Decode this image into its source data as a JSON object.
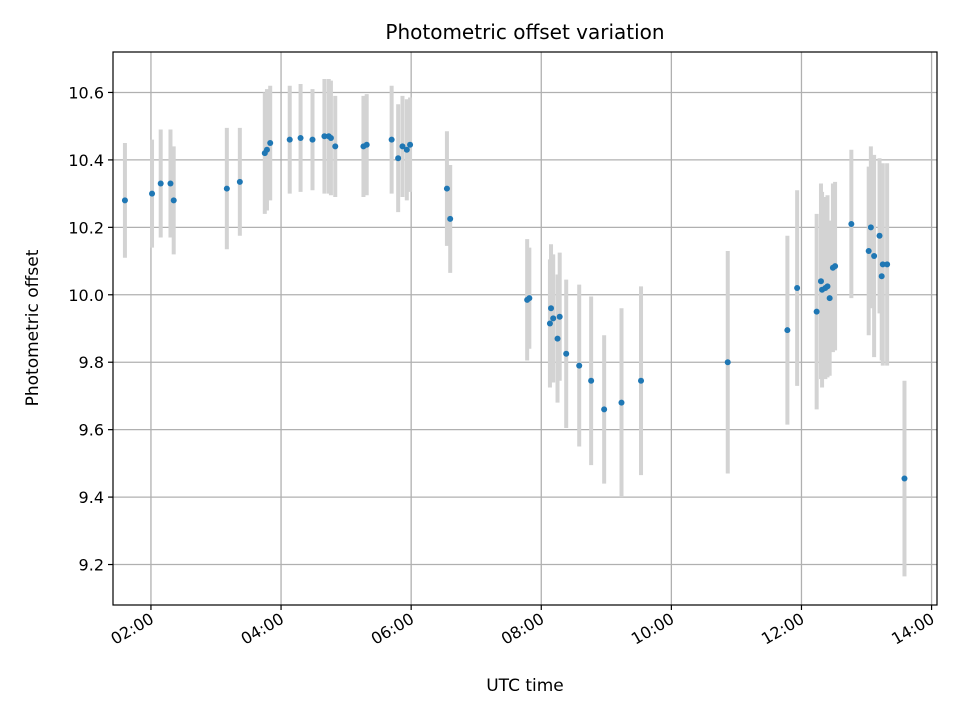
{
  "chart_data": {
    "type": "scatter",
    "title": "Photometric offset variation",
    "xlabel": "UTC time",
    "ylabel": "Photometric offset",
    "grid": true,
    "xlim": [
      "01:25",
      "14:05"
    ],
    "ylim": [
      9.08,
      10.72
    ],
    "x_ticks": [
      "02:00",
      "04:00",
      "06:00",
      "08:00",
      "10:00",
      "12:00",
      "14:00"
    ],
    "y_ticks": [
      "9.2",
      "9.4",
      "9.6",
      "9.8",
      "10.0",
      "10.2",
      "10.4",
      "10.6"
    ],
    "colors": {
      "point": "#1f77b4",
      "errorbar": "#d3d3d3"
    },
    "series": [
      {
        "x": [
          "01:36",
          "02:01",
          "02:09",
          "02:18",
          "02:21",
          "03:10",
          "03:22",
          "03:45",
          "03:47",
          "03:50",
          "04:08",
          "04:18",
          "04:29",
          "04:40",
          "04:44",
          "04:46",
          "04:50",
          "05:16",
          "05:19",
          "05:42",
          "05:48",
          "05:52",
          "05:56",
          "05:59",
          "06:33",
          "06:36",
          "07:47",
          "07:49",
          "08:08",
          "08:09",
          "08:11",
          "08:15",
          "08:17",
          "08:23",
          "08:35",
          "08:46",
          "08:58",
          "09:14",
          "09:32",
          "10:52",
          "11:47",
          "11:56",
          "12:14",
          "12:18",
          "12:19",
          "12:22",
          "12:24",
          "12:26",
          "12:29",
          "12:31",
          "12:46",
          "13:02",
          "13:04",
          "13:07",
          "13:12",
          "13:14",
          "13:15",
          "13:19",
          "13:35"
        ],
        "y": [
          10.28,
          10.3,
          10.33,
          10.33,
          10.28,
          10.315,
          10.335,
          10.42,
          10.43,
          10.45,
          10.46,
          10.465,
          10.46,
          10.47,
          10.47,
          10.465,
          10.44,
          10.44,
          10.445,
          10.46,
          10.405,
          10.44,
          10.43,
          10.445,
          10.315,
          10.225,
          9.985,
          9.99,
          9.915,
          9.96,
          9.93,
          9.87,
          9.935,
          9.825,
          9.79,
          9.745,
          9.66,
          9.68,
          9.745,
          9.8,
          9.895,
          10.02,
          9.95,
          10.04,
          10.015,
          10.02,
          10.025,
          9.99,
          10.08,
          10.085,
          10.21,
          10.13,
          10.2,
          10.115,
          10.175,
          10.055,
          10.09,
          10.09,
          9.455
        ],
        "err": [
          0.17,
          0.16,
          0.16,
          0.16,
          0.16,
          0.18,
          0.16,
          0.18,
          0.18,
          0.17,
          0.16,
          0.16,
          0.15,
          0.17,
          0.17,
          0.17,
          0.15,
          0.15,
          0.15,
          0.16,
          0.16,
          0.15,
          0.15,
          0.14,
          0.17,
          0.16,
          0.18,
          0.15,
          0.19,
          0.19,
          0.19,
          0.19,
          0.19,
          0.22,
          0.24,
          0.25,
          0.22,
          0.28,
          0.28,
          0.33,
          0.28,
          0.29,
          0.29,
          0.29,
          0.29,
          0.27,
          0.27,
          0.23,
          0.25,
          0.25,
          0.22,
          0.25,
          0.24,
          0.3,
          0.23,
          0.25,
          0.3,
          0.3,
          0.29
        ]
      }
    ]
  }
}
